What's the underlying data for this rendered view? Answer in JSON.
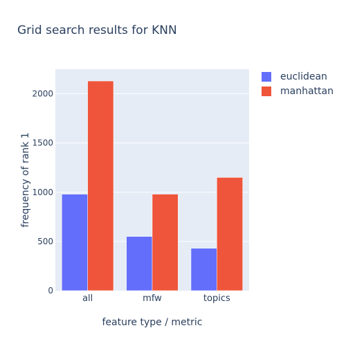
{
  "chart_data": {
    "type": "bar",
    "title": "Grid search results for KNN",
    "xlabel": "feature type / metric",
    "ylabel": "frequency of rank 1",
    "categories": [
      "all",
      "mfw",
      "topics"
    ],
    "series": [
      {
        "name": "euclidean",
        "values": [
          980,
          550,
          430
        ],
        "color": "#636efa"
      },
      {
        "name": "manhattan",
        "values": [
          2130,
          980,
          1150
        ],
        "color": "#ef553b"
      }
    ],
    "ylim": [
      0,
      2250
    ],
    "yticks": [
      0,
      500,
      1000,
      1500,
      2000
    ],
    "grid": true,
    "legend_position": "top-right",
    "background_color": "#e5ecf6"
  }
}
